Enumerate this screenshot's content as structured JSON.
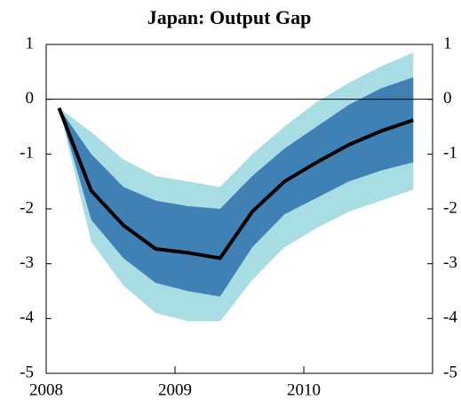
{
  "chart_data": {
    "type": "fan",
    "title": "Japan: Output Gap",
    "x": [
      2008.1,
      2008.35,
      2008.6,
      2008.85,
      2009.1,
      2009.35,
      2009.6,
      2009.85,
      2010.1,
      2010.35,
      2010.6,
      2010.85
    ],
    "series": [
      {
        "color": "#000000",
        "values": [
          -0.16,
          -1.67,
          -2.3,
          -2.73,
          -2.8,
          -2.9,
          -2.05,
          -1.5,
          -1.15,
          -0.83,
          -0.58,
          -0.38
        ]
      }
    ],
    "bands": [
      {
        "color": "#a8dde4",
        "upper": [
          -0.16,
          -0.6,
          -1.1,
          -1.4,
          -1.5,
          -1.6,
          -1.0,
          -0.5,
          -0.05,
          0.3,
          0.6,
          0.85
        ],
        "lower": [
          -0.16,
          -2.6,
          -3.4,
          -3.9,
          -4.05,
          -4.05,
          -3.3,
          -2.7,
          -2.35,
          -2.05,
          -1.85,
          -1.65
        ]
      },
      {
        "color": "#3f80b5",
        "upper": [
          -0.16,
          -1.0,
          -1.6,
          -1.85,
          -1.95,
          -2.0,
          -1.4,
          -0.9,
          -0.5,
          -0.1,
          0.2,
          0.4
        ],
        "lower": [
          -0.16,
          -2.2,
          -2.9,
          -3.35,
          -3.5,
          -3.6,
          -2.7,
          -2.1,
          -1.8,
          -1.5,
          -1.3,
          -1.15
        ]
      }
    ],
    "reference_line": 0,
    "xlim": [
      2008,
      2011
    ],
    "xticks": [
      2008,
      2009,
      2010
    ],
    "ylim": [
      -5,
      1
    ],
    "yticks": [
      -5,
      -4,
      -3,
      -2,
      -1,
      0,
      1
    ],
    "y2lim": [
      -5,
      1
    ],
    "y2ticks": [
      -5,
      -4,
      -3,
      -2,
      -1,
      0,
      1
    ]
  }
}
